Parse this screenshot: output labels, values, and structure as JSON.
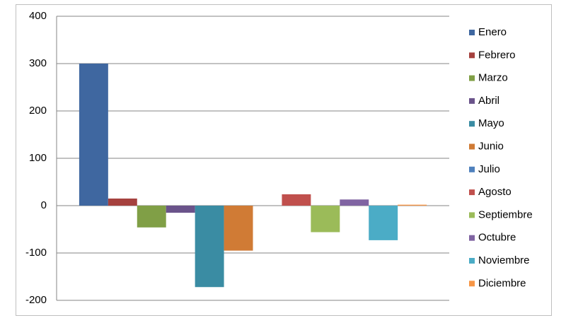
{
  "chart_data": {
    "type": "bar",
    "categories": [
      null
    ],
    "series": [
      {
        "name": "Enero",
        "color": "#3f67a0",
        "values": [
          300
        ]
      },
      {
        "name": "Febrero",
        "color": "#a5413e",
        "values": [
          15
        ]
      },
      {
        "name": "Marzo",
        "color": "#809f46",
        "values": [
          -46
        ]
      },
      {
        "name": "Abril",
        "color": "#6a538a",
        "values": [
          -15
        ]
      },
      {
        "name": "Mayo",
        "color": "#3a8ca3",
        "values": [
          -172
        ]
      },
      {
        "name": "Junio",
        "color": "#d07b35",
        "values": [
          -95
        ]
      },
      {
        "name": "Julio",
        "color": "#4f81bd",
        "values": [
          0
        ]
      },
      {
        "name": "Agosto",
        "color": "#c0504d",
        "values": [
          24
        ]
      },
      {
        "name": "Septiembre",
        "color": "#9bbb59",
        "values": [
          -56
        ]
      },
      {
        "name": "Octubre",
        "color": "#8064a2",
        "values": [
          13
        ]
      },
      {
        "name": "Noviembre",
        "color": "#4bacc6",
        "values": [
          -73
        ]
      },
      {
        "name": "Diciembre",
        "color": "#f79646",
        "values": [
          2
        ]
      }
    ],
    "ylim": [
      -200,
      400
    ],
    "yticks": [
      -200,
      -100,
      0,
      100,
      200,
      300,
      400
    ],
    "grid": true,
    "legend": "right"
  }
}
